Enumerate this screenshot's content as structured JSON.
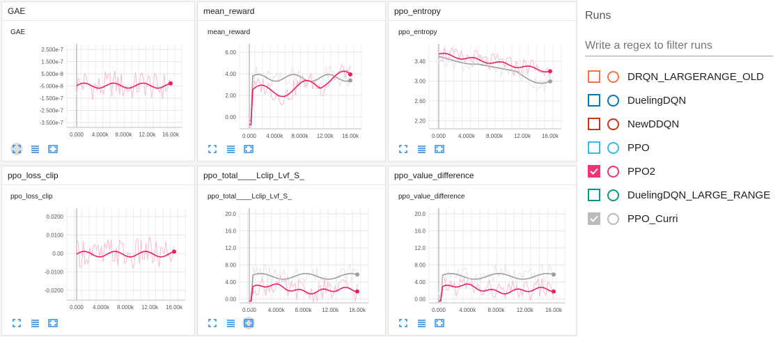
{
  "cards": [
    {
      "header": "GAE",
      "plot_title": "GAE",
      "yticks": [
        "2.500e-7",
        "1.500e-7",
        "5.000e-8",
        "-5.000e-8",
        "-1.500e-7",
        "-2.500e-7",
        "-3.500e-7"
      ],
      "xticks": [
        "0.000",
        "4.000k",
        "8.000k",
        "12.00k",
        "16.00k"
      ],
      "active_button": 0
    },
    {
      "header": "mean_reward",
      "plot_title": "mean_reward",
      "yticks": [
        "6.00",
        "4.00",
        "2.00",
        "0.00"
      ],
      "xticks": [
        "0.000",
        "4.000k",
        "8.000k",
        "12.00k",
        "16.00k"
      ],
      "active_button": -1
    },
    {
      "header": "ppo_entropy",
      "plot_title": "ppo_entropy",
      "yticks": [
        "3.40",
        "3.00",
        "2.60",
        "2.20"
      ],
      "xticks": [
        "0.000",
        "4.000k",
        "8.000k",
        "12.00k",
        "16.00k"
      ],
      "active_button": -1
    },
    {
      "header": "ppo_loss_clip",
      "plot_title": "ppo_loss_clip",
      "yticks": [
        "0.0200",
        "0.0100",
        "0.00",
        "-0.0100",
        "-0.0200"
      ],
      "xticks": [
        "0.000",
        "4.000k",
        "8.000k",
        "12.00k",
        "16.00k"
      ],
      "active_button": -1
    },
    {
      "header": "ppo_total____Lclip_Lvf_S_",
      "plot_title": "ppo_total____Lclip_Lvf_S_",
      "yticks": [
        "20.0",
        "16.0",
        "12.0",
        "8.00",
        "4.00",
        "0.00"
      ],
      "xticks": [
        "0.000",
        "4.000k",
        "8.000k",
        "12.00k",
        "16.00k"
      ],
      "active_button": 2
    },
    {
      "header": "ppo_value_difference",
      "plot_title": "ppo_value_difference",
      "yticks": [
        "20.0",
        "16.0",
        "12.0",
        "8.00",
        "4.00",
        "0.00"
      ],
      "xticks": [
        "0.000",
        "4.000k",
        "8.000k",
        "12.00k",
        "16.00k"
      ],
      "active_button": -1
    }
  ],
  "runs_panel": {
    "title": "Runs",
    "filter_placeholder": "Write a regex to filter runs",
    "runs": [
      {
        "name": "DRQN_LARGERANGE_OLD",
        "color": "#ff7043",
        "checked": false
      },
      {
        "name": "DuelingDQN",
        "color": "#0077bb",
        "checked": false
      },
      {
        "name": "NewDDQN",
        "color": "#cc3311",
        "checked": false
      },
      {
        "name": "PPO",
        "color": "#33bbee",
        "checked": false
      },
      {
        "name": "PPO2",
        "color": "#ee3377",
        "checked": true
      },
      {
        "name": "DuelingDQN_LARGE_RANGE",
        "color": "#009988",
        "checked": false
      },
      {
        "name": "PPO_Curri",
        "color": "#bbbbbb",
        "checked": true
      }
    ]
  },
  "series_colors": {
    "ppo2": "#e91e63",
    "ppo2_raw": "#f8bbd0",
    "curri": "#9e9e9e",
    "curri_raw": "#e6e6e6"
  },
  "icons": [
    "fit-domain-icon",
    "toggle-log-icon",
    "expand-icon"
  ]
}
